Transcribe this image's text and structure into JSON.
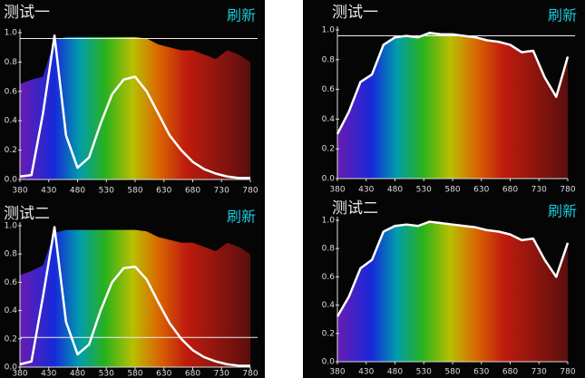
{
  "chart_data": [
    {
      "type": "line",
      "title": "测试一",
      "button": "刷新",
      "x": [
        380,
        400,
        420,
        440,
        460,
        480,
        500,
        520,
        540,
        560,
        580,
        600,
        620,
        640,
        660,
        680,
        700,
        720,
        740,
        760,
        780
      ],
      "series": [
        {
          "color": "#ffffff",
          "values": [
            0.02,
            0.03,
            0.45,
            0.98,
            0.3,
            0.08,
            0.15,
            0.38,
            0.58,
            0.68,
            0.7,
            0.6,
            0.45,
            0.3,
            0.2,
            0.12,
            0.07,
            0.04,
            0.02,
            0.01,
            0.01
          ]
        }
      ],
      "fill_values": [
        0.65,
        0.68,
        0.7,
        0.95,
        0.97,
        0.97,
        0.97,
        0.97,
        0.97,
        0.97,
        0.97,
        0.96,
        0.92,
        0.9,
        0.88,
        0.88,
        0.85,
        0.82,
        0.88,
        0.85,
        0.8
      ],
      "hline": 0.96,
      "xlim": [
        380,
        780
      ],
      "xticks": [
        380,
        430,
        480,
        530,
        580,
        630,
        680,
        730,
        780
      ],
      "ylim": [
        0,
        1
      ],
      "yticks": [
        {
          "value": 0,
          "label": "0.0"
        },
        {
          "value": 0.2,
          "label": "0.2"
        },
        {
          "value": 0.4,
          "label": "0.4"
        },
        {
          "value": 0.6,
          "label": "0.6"
        },
        {
          "value": 0.8,
          "label": "0.8"
        },
        {
          "value": 1,
          "label": "1.0"
        }
      ]
    },
    {
      "type": "line",
      "title": "测试二",
      "button": "刷新",
      "x": [
        380,
        400,
        420,
        440,
        460,
        480,
        500,
        520,
        540,
        560,
        580,
        600,
        620,
        640,
        660,
        680,
        700,
        720,
        740,
        760,
        780
      ],
      "series": [
        {
          "color": "#ffffff",
          "values": [
            0.02,
            0.04,
            0.5,
            0.99,
            0.32,
            0.09,
            0.16,
            0.4,
            0.6,
            0.7,
            0.71,
            0.62,
            0.46,
            0.31,
            0.2,
            0.12,
            0.07,
            0.04,
            0.02,
            0.01,
            0.01
          ]
        }
      ],
      "fill_values": [
        0.65,
        0.68,
        0.72,
        0.95,
        0.97,
        0.97,
        0.97,
        0.97,
        0.97,
        0.97,
        0.97,
        0.96,
        0.92,
        0.9,
        0.88,
        0.88,
        0.85,
        0.82,
        0.88,
        0.85,
        0.8
      ],
      "hline": 0.21,
      "xlim": [
        380,
        780
      ],
      "xticks": [
        380,
        430,
        480,
        530,
        580,
        630,
        680,
        730,
        780
      ],
      "ylim": [
        0,
        1
      ],
      "yticks": [
        {
          "value": 0,
          "label": "0.0"
        },
        {
          "value": 0.2,
          "label": "0.2"
        },
        {
          "value": 0.4,
          "label": "0.4"
        },
        {
          "value": 0.6,
          "label": "0.6"
        },
        {
          "value": 0.8,
          "label": "0.8"
        },
        {
          "value": 1,
          "label": "1.0"
        }
      ]
    },
    {
      "type": "line",
      "title": "测试一",
      "button": "刷新",
      "x": [
        380,
        400,
        420,
        440,
        460,
        480,
        500,
        520,
        540,
        560,
        580,
        600,
        620,
        640,
        660,
        680,
        700,
        720,
        740,
        760,
        780
      ],
      "series": [
        {
          "color": "#ffffff",
          "values": [
            0.3,
            0.45,
            0.65,
            0.7,
            0.9,
            0.95,
            0.96,
            0.95,
            0.98,
            0.97,
            0.97,
            0.96,
            0.95,
            0.93,
            0.92,
            0.9,
            0.85,
            0.86,
            0.68,
            0.55,
            0.82
          ]
        }
      ],
      "hline": 0.96,
      "xlim": [
        380,
        780
      ],
      "xticks": [
        380,
        430,
        480,
        530,
        580,
        630,
        680,
        730,
        780
      ],
      "ylim": [
        0,
        1
      ],
      "yticks": [
        {
          "value": 0,
          "label": "0.0"
        },
        {
          "value": 0.2,
          "label": "0.2"
        },
        {
          "value": 0.4,
          "label": "0.4"
        },
        {
          "value": 0.6,
          "label": "0.6"
        },
        {
          "value": 0.8,
          "label": "0.8"
        },
        {
          "value": 1,
          "label": "1.0"
        }
      ]
    },
    {
      "type": "line",
      "title": "测试二",
      "button": "刷新",
      "x": [
        380,
        400,
        420,
        440,
        460,
        480,
        500,
        520,
        540,
        560,
        580,
        600,
        620,
        640,
        660,
        680,
        700,
        720,
        740,
        760,
        780
      ],
      "series": [
        {
          "color": "#ffffff",
          "values": [
            0.32,
            0.46,
            0.66,
            0.72,
            0.92,
            0.96,
            0.97,
            0.96,
            0.99,
            0.98,
            0.97,
            0.96,
            0.95,
            0.93,
            0.92,
            0.9,
            0.86,
            0.87,
            0.72,
            0.6,
            0.84
          ]
        }
      ],
      "xlim": [
        380,
        780
      ],
      "xticks": [
        380,
        430,
        480,
        530,
        580,
        630,
        680,
        730,
        780
      ],
      "ylim": [
        0,
        1
      ],
      "yticks": [
        {
          "value": 0,
          "label": "0.0"
        },
        {
          "value": 0.2,
          "label": "0.2"
        },
        {
          "value": 0.4,
          "label": "0.4"
        },
        {
          "value": 0.6,
          "label": "0.6"
        },
        {
          "value": 0.8,
          "label": "0.8"
        },
        {
          "value": 1,
          "label": "1.0"
        }
      ]
    }
  ]
}
